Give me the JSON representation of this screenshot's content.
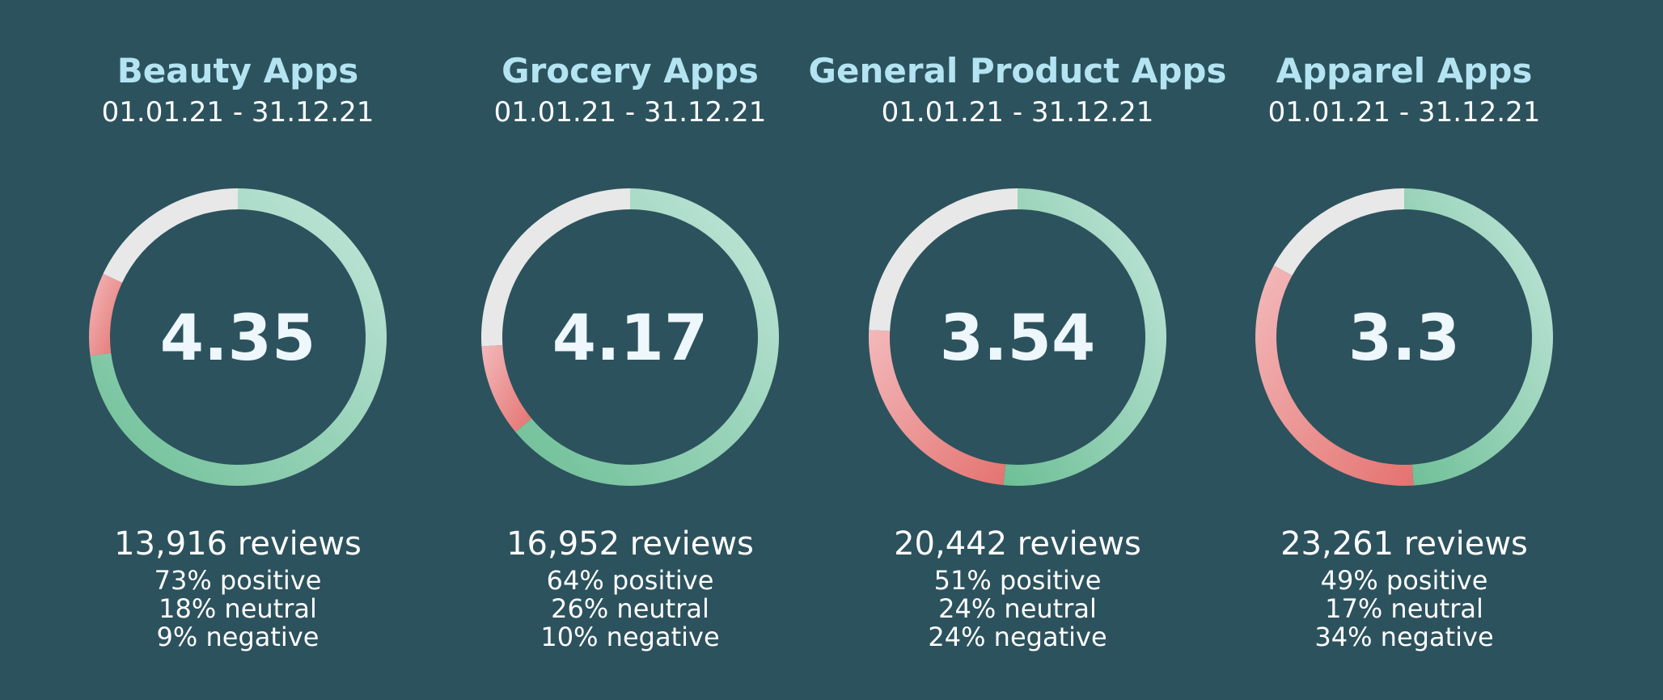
{
  "colors": {
    "background": "#2c525d",
    "title": "#b4e4f2",
    "positive_start": "#6dbf96",
    "positive_end": "#c4e7dc",
    "neutral": "#e8e8e8",
    "negative_start": "#f3b9bb",
    "negative_end": "#e47370"
  },
  "chart_data": [
    {
      "type": "pie",
      "variant": "donut",
      "title": "Beauty Apps",
      "subtitle": "01.01.21 - 31.12.21",
      "center_label": "4.35",
      "reviews_label": "13,916 reviews",
      "stats": [
        "73% positive",
        "18% neutral",
        "9% negative"
      ],
      "slices": [
        {
          "label": "positive",
          "value": 73
        },
        {
          "label": "negative",
          "value": 9
        },
        {
          "label": "neutral",
          "value": 18
        }
      ]
    },
    {
      "type": "pie",
      "variant": "donut",
      "title": "Grocery Apps",
      "subtitle": "01.01.21 - 31.12.21",
      "center_label": "4.17",
      "reviews_label": "16,952 reviews",
      "stats": [
        "64% positive",
        "26% neutral",
        "10% negative"
      ],
      "slices": [
        {
          "label": "positive",
          "value": 64
        },
        {
          "label": "negative",
          "value": 10
        },
        {
          "label": "neutral",
          "value": 26
        }
      ]
    },
    {
      "type": "pie",
      "variant": "donut",
      "title": "General Product Apps",
      "subtitle": "01.01.21 - 31.12.21",
      "center_label": "3.54",
      "reviews_label": "20,442 reviews",
      "stats": [
        "51% positive",
        "24% neutral",
        "24% negative"
      ],
      "slices": [
        {
          "label": "positive",
          "value": 51
        },
        {
          "label": "negative",
          "value": 24
        },
        {
          "label": "neutral",
          "value": 24
        }
      ]
    },
    {
      "type": "pie",
      "variant": "donut",
      "title": "Apparel Apps",
      "subtitle": "01.01.21 - 31.12.21",
      "center_label": "3.3",
      "reviews_label": "23,261 reviews",
      "stats": [
        "49% positive",
        "17% neutral",
        "34% negative"
      ],
      "slices": [
        {
          "label": "positive",
          "value": 49
        },
        {
          "label": "negative",
          "value": 34
        },
        {
          "label": "neutral",
          "value": 17
        }
      ]
    }
  ]
}
